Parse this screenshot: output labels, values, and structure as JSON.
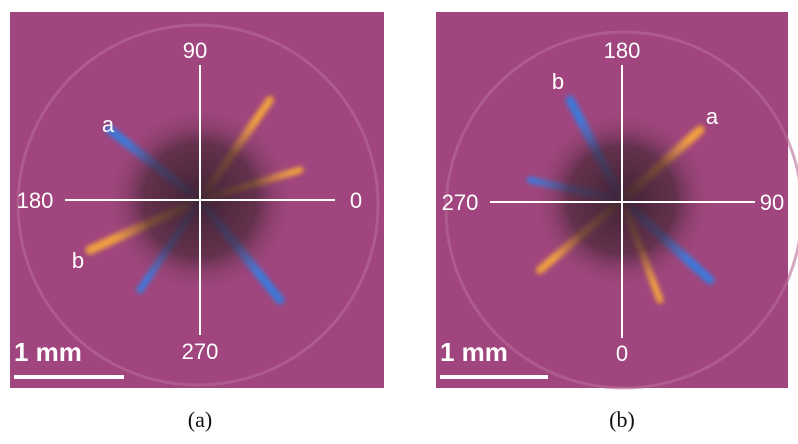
{
  "panels": [
    {
      "caption": "(a)",
      "top": "90",
      "left": "180",
      "right": "0",
      "bottom": "270",
      "marks": [
        "a",
        "b"
      ],
      "scale": "1 mm"
    },
    {
      "caption": "(b)",
      "top": "180",
      "left": "270",
      "right": "90",
      "bottom": "0",
      "marks": [
        "b",
        "a"
      ],
      "scale": "1 mm"
    }
  ]
}
